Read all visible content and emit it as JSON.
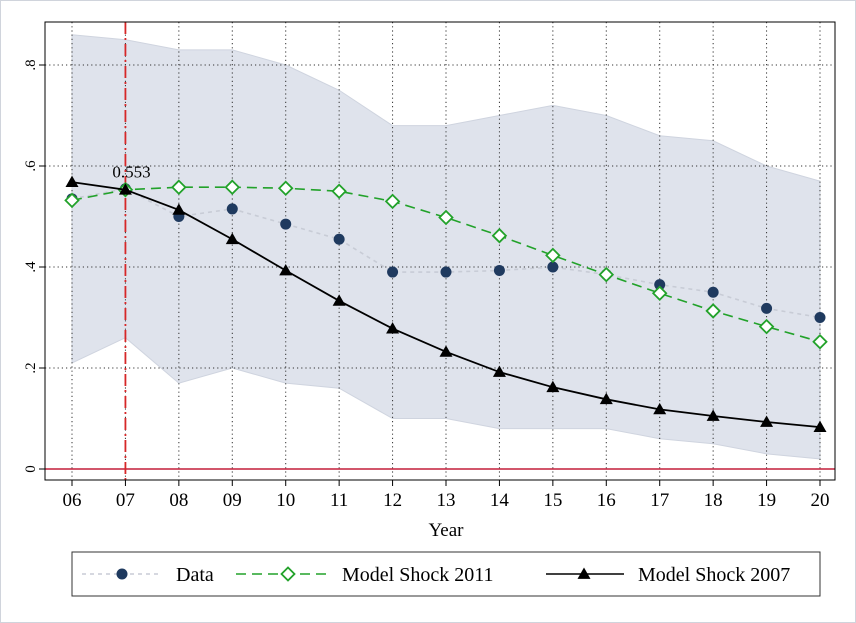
{
  "chart_data": {
    "type": "line",
    "xlabel": "Year",
    "ylabel": "",
    "title": "",
    "x": [
      6,
      7,
      8,
      9,
      10,
      11,
      12,
      13,
      14,
      15,
      16,
      17,
      18,
      19,
      20
    ],
    "x_tick_labels": [
      "06",
      "07",
      "08",
      "09",
      "10",
      "11",
      "12",
      "13",
      "14",
      "15",
      "16",
      "17",
      "18",
      "19",
      "20"
    ],
    "xlim": [
      6,
      20
    ],
    "ylim": [
      0,
      0.8
    ],
    "y_ticks": [
      0,
      0.2,
      0.4,
      0.6,
      0.8
    ],
    "y_tick_labels": [
      "0",
      ".2",
      ".4",
      ".6",
      ".8"
    ],
    "grid": true,
    "band": {
      "upper": [
        0.86,
        0.85,
        0.83,
        0.83,
        0.8,
        0.75,
        0.68,
        0.68,
        0.7,
        0.72,
        0.7,
        0.66,
        0.65,
        0.6,
        0.57
      ],
      "lower": [
        0.21,
        0.26,
        0.17,
        0.2,
        0.17,
        0.16,
        0.1,
        0.1,
        0.08,
        0.08,
        0.08,
        0.06,
        0.05,
        0.03,
        0.02
      ],
      "color": "#dfe3ec"
    },
    "vline": {
      "x": 7,
      "color": "#d62728"
    },
    "hline": {
      "y": 0,
      "color": "#c41e3a"
    },
    "annotation": {
      "text": "0.553",
      "x": 7,
      "y": 0.553
    },
    "series": [
      {
        "name": "Data",
        "values": [
          0.535,
          0.555,
          0.5,
          0.515,
          0.485,
          0.455,
          0.39,
          0.39,
          0.393,
          0.4,
          0.385,
          0.365,
          0.35,
          0.318,
          0.3
        ],
        "color": "#1f3a5f",
        "line_color": "#c8ccd6",
        "marker": "circle",
        "dash": "dotted"
      },
      {
        "name": "Model Shock 2011",
        "values": [
          0.532,
          0.553,
          0.558,
          0.558,
          0.556,
          0.55,
          0.53,
          0.498,
          0.462,
          0.423,
          0.385,
          0.348,
          0.313,
          0.282,
          0.252
        ],
        "color": "#22a22a",
        "marker": "diamond",
        "dash": "dashed"
      },
      {
        "name": "Model Shock 2007",
        "values": [
          0.568,
          0.553,
          0.513,
          0.455,
          0.393,
          0.333,
          0.278,
          0.232,
          0.192,
          0.162,
          0.138,
          0.118,
          0.105,
          0.093,
          0.083
        ],
        "color": "#000000",
        "marker": "triangle",
        "dash": "solid"
      }
    ],
    "legend_position": "bottom"
  }
}
